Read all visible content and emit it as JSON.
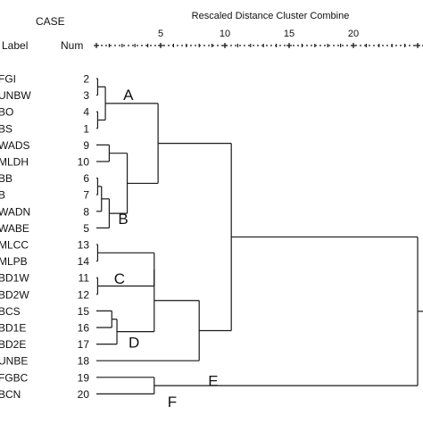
{
  "chart_data": {
    "type": "dendrogram",
    "title": "Rescaled Distance Cluster Combine",
    "case_header": "CASE",
    "label_header": "Label",
    "num_header": "Num",
    "axis_ticks": [
      0,
      5,
      10,
      15,
      20,
      25
    ],
    "axis_tick_labels": [
      "",
      "5",
      "10",
      "15",
      "20",
      ""
    ],
    "xlim": [
      0,
      25
    ],
    "cases": [
      {
        "label": "FGI",
        "num": "2"
      },
      {
        "label": "UNBW",
        "num": "3"
      },
      {
        "label": "BO",
        "num": "4"
      },
      {
        "label": "BS",
        "num": "1"
      },
      {
        "label": "WADS",
        "num": "9"
      },
      {
        "label": "MLDH",
        "num": "10"
      },
      {
        "label": "BB",
        "num": "6"
      },
      {
        "label": "B",
        "num": "7"
      },
      {
        "label": "WADN",
        "num": "8"
      },
      {
        "label": "WABE",
        "num": "5"
      },
      {
        "label": "MLCC",
        "num": "13"
      },
      {
        "label": "MLPB",
        "num": "14"
      },
      {
        "label": "BD1W",
        "num": "11"
      },
      {
        "label": "BD2W",
        "num": "12"
      },
      {
        "label": "BCS",
        "num": "15"
      },
      {
        "label": "BD1E",
        "num": "16"
      },
      {
        "label": "BD2E",
        "num": "17"
      },
      {
        "label": "UNBE",
        "num": "18"
      },
      {
        "label": "FGBC",
        "num": "19"
      },
      {
        "label": "BCN",
        "num": "20"
      }
    ],
    "merges": [
      {
        "id": "m1",
        "children": [
          0,
          1
        ],
        "distance": 0.1
      },
      {
        "id": "m2",
        "children": [
          2,
          3
        ],
        "distance": 0.1
      },
      {
        "id": "m3",
        "children": [
          "m1",
          "m2"
        ],
        "distance": 0.7
      },
      {
        "id": "m4",
        "children": [
          4,
          5
        ],
        "distance": 1.0
      },
      {
        "id": "m5",
        "children": [
          6,
          7
        ],
        "distance": 0.1
      },
      {
        "id": "m6",
        "children": [
          "m5",
          8
        ],
        "distance": 0.4
      },
      {
        "id": "m7",
        "children": [
          "m6",
          9
        ],
        "distance": 1.0
      },
      {
        "id": "m8",
        "children": [
          "m4",
          "m7"
        ],
        "distance": 2.4
      },
      {
        "id": "m9",
        "children": [
          "m3",
          "m8"
        ],
        "distance": 4.8
      },
      {
        "id": "m10",
        "children": [
          10,
          11
        ],
        "distance": 0.1
      },
      {
        "id": "m11",
        "children": [
          12,
          13
        ],
        "distance": 0.1
      },
      {
        "id": "m12",
        "children": [
          "m10",
          "m11"
        ],
        "distance": 4.5
      },
      {
        "id": "m13",
        "children": [
          14,
          15
        ],
        "distance": 1.2
      },
      {
        "id": "m14",
        "children": [
          "m13",
          16
        ],
        "distance": 1.6
      },
      {
        "id": "m15",
        "children": [
          "m12",
          "m14"
        ],
        "distance": 4.5
      },
      {
        "id": "m16",
        "children": [
          "m15",
          17
        ],
        "distance": 8.0
      },
      {
        "id": "m17",
        "children": [
          "m9",
          "m16"
        ],
        "distance": 10.5
      },
      {
        "id": "m18",
        "children": [
          18,
          19
        ],
        "distance": 4.5
      },
      {
        "id": "m19",
        "children": [
          "m17",
          "m18"
        ],
        "distance": 25.0
      }
    ],
    "group_labels": [
      {
        "text": "A",
        "node": "m3"
      },
      {
        "text": "B",
        "node": "m7"
      },
      {
        "text": "C",
        "node": "m12"
      },
      {
        "text": "D",
        "node": "m14"
      },
      {
        "text": "E",
        "node": "m16"
      },
      {
        "text": "F",
        "node": "m18"
      }
    ]
  }
}
